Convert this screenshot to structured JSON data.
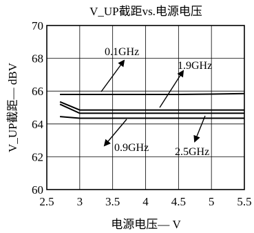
{
  "chart_data": {
    "type": "line",
    "title": "V_UP截距vs.电源电压",
    "xlabel": "电源电压— V",
    "ylabel": "V_UP截距— dBV",
    "xlim": [
      2.5,
      5.5
    ],
    "ylim": [
      60,
      70
    ],
    "x_ticks": [
      "2.5",
      "3",
      "3.5",
      "4",
      "4.5",
      "5",
      "5.5"
    ],
    "y_ticks": [
      "60",
      "62",
      "64",
      "66",
      "68",
      "70"
    ],
    "grid": true,
    "series": [
      {
        "name": "0.1GHz",
        "x": [
          2.7,
          3.0,
          3.5,
          4.0,
          4.5,
          5.0,
          5.5
        ],
        "y": [
          65.8,
          65.8,
          65.8,
          65.8,
          65.8,
          65.82,
          65.85
        ]
      },
      {
        "name": "1.9GHz",
        "x": [
          2.7,
          3.0,
          3.5,
          4.0,
          4.5,
          5.0,
          5.5
        ],
        "y": [
          65.35,
          64.85,
          64.85,
          64.85,
          64.85,
          64.85,
          64.85
        ]
      },
      {
        "name": "0.9GHz",
        "x": [
          2.7,
          3.0,
          3.5,
          4.0,
          4.5,
          5.0,
          5.5
        ],
        "y": [
          65.2,
          64.65,
          64.65,
          64.65,
          64.65,
          64.65,
          64.65
        ]
      },
      {
        "name": "2.5GHz",
        "x": [
          2.7,
          3.0,
          3.5,
          4.0,
          4.5,
          5.0,
          5.5
        ],
        "y": [
          64.45,
          64.35,
          64.35,
          64.35,
          64.35,
          64.35,
          64.35
        ]
      }
    ],
    "annotations": [
      {
        "text": "0.1GHz",
        "series": "0.1GHz"
      },
      {
        "text": "1.9GHz",
        "series": "1.9GHz"
      },
      {
        "text": "0.9GHz",
        "series": "0.9GHz"
      },
      {
        "text": "2.5GHz",
        "series": "2.5GHz"
      }
    ]
  }
}
